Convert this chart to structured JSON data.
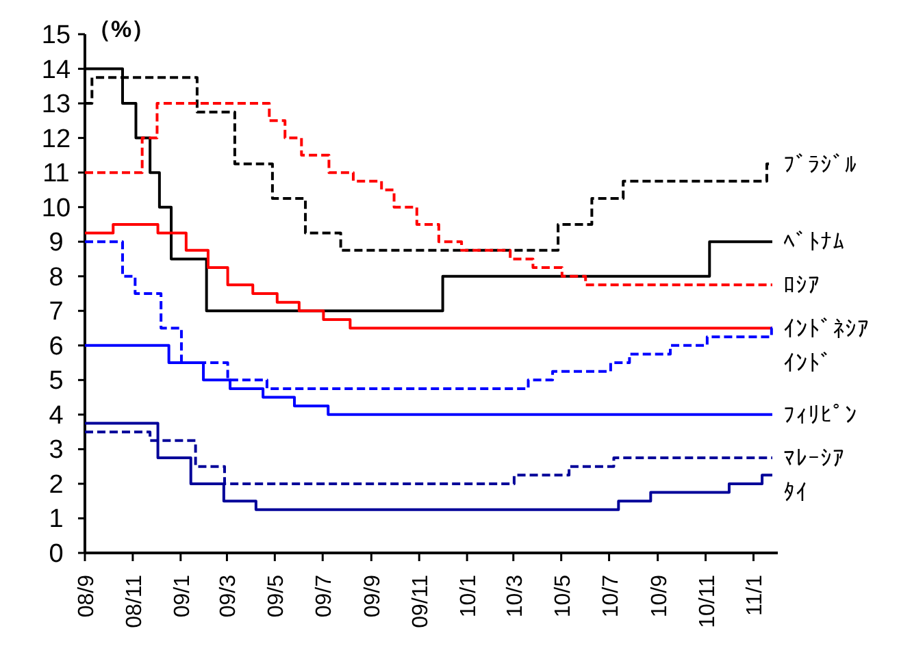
{
  "chart_data": {
    "type": "step",
    "ylabel": "（%）",
    "xlim": [
      "2008-09-01",
      "2011-02-01"
    ],
    "ylim": [
      0,
      15
    ],
    "yticks": [
      0,
      1,
      2,
      3,
      4,
      5,
      6,
      7,
      8,
      9,
      10,
      11,
      12,
      13,
      14,
      15
    ],
    "xticks": [
      {
        "value": "2008-09",
        "label": "08/9"
      },
      {
        "value": "2008-11",
        "label": "08/11"
      },
      {
        "value": "2009-01",
        "label": "09/1"
      },
      {
        "value": "2009-03",
        "label": "09/3"
      },
      {
        "value": "2009-05",
        "label": "09/5"
      },
      {
        "value": "2009-07",
        "label": "09/7"
      },
      {
        "value": "2009-09",
        "label": "09/9"
      },
      {
        "value": "2009-11",
        "label": "09/11"
      },
      {
        "value": "2010-01",
        "label": "10/1"
      },
      {
        "value": "2010-03",
        "label": "10/3"
      },
      {
        "value": "2010-05",
        "label": "10/5"
      },
      {
        "value": "2010-07",
        "label": "10/7"
      },
      {
        "value": "2010-09",
        "label": "10/9"
      },
      {
        "value": "2010-11",
        "label": "10/11"
      },
      {
        "value": "2011-01",
        "label": "11/1"
      }
    ],
    "grid": false,
    "series": [
      {
        "name": "ﾌﾞﾗｼﾞﾙ",
        "color": "#000000",
        "line_style": "dashed",
        "x": [
          "2008-09-01",
          "2008-09-10",
          "2009-01-22",
          "2009-03-11",
          "2009-04-28",
          "2009-06-09",
          "2009-07-24",
          "2010-04-27",
          "2010-06-09",
          "2010-07-19",
          "2011-01-18",
          "2011-01-25"
        ],
        "values": [
          13,
          13.75,
          12.75,
          11.25,
          10.25,
          9.25,
          8.75,
          9.5,
          10.25,
          10.75,
          11.25,
          11.25
        ]
      },
      {
        "name": "ﾍﾞﾄﾅﾑ",
        "color": "#000000",
        "line_style": "solid",
        "x": [
          "2008-09-01",
          "2008-10-19",
          "2008-11-05",
          "2008-11-23",
          "2008-12-05",
          "2008-12-20",
          "2009-02-03",
          "2009-12-01",
          "2010-11-06",
          "2011-01-25"
        ],
        "values": [
          14,
          13,
          12,
          11,
          10,
          8.5,
          7,
          8,
          9,
          9
        ]
      },
      {
        "name": "ﾛｼｱ",
        "color": "#ff0000",
        "line_style": "dashed",
        "x": [
          "2008-09-01",
          "2008-11-13",
          "2008-12-02",
          "2009-04-24",
          "2009-05-14",
          "2009-06-04",
          "2009-07-09",
          "2009-08-09",
          "2009-09-14",
          "2009-09-30",
          "2009-10-29",
          "2009-11-26",
          "2009-12-25",
          "2010-02-25",
          "2010-03-26",
          "2010-05-02",
          "2010-06-01",
          "2011-01-25"
        ],
        "values": [
          11,
          12,
          13,
          12.5,
          12,
          11.5,
          11,
          10.75,
          10.5,
          10,
          9.5,
          9,
          8.75,
          8.5,
          8.25,
          8,
          7.75,
          7.75
        ]
      },
      {
        "name": "ｲﾝﾄﾞﾈｼｱ",
        "color": "#ff0000",
        "line_style": "solid",
        "x": [
          "2008-09-01",
          "2008-10-07",
          "2008-12-03",
          "2009-01-08",
          "2009-02-05",
          "2009-03-02",
          "2009-04-03",
          "2009-05-04",
          "2009-06-01",
          "2009-07-02",
          "2009-08-05",
          "2011-01-25"
        ],
        "values": [
          9.25,
          9.5,
          9.25,
          8.75,
          8.25,
          7.75,
          7.5,
          7.25,
          7,
          6.75,
          6.5,
          6.5
        ]
      },
      {
        "name": "ｲﾝﾄﾞ",
        "color": "#0000ff",
        "line_style": "dashed",
        "x": [
          "2008-09-01",
          "2008-10-19",
          "2008-11-04",
          "2008-12-07",
          "2009-01-02",
          "2009-03-02",
          "2009-04-21",
          "2010-03-20",
          "2010-04-20",
          "2010-07-03",
          "2010-07-27",
          "2010-09-17",
          "2010-11-03",
          "2011-01-24",
          "2011-01-25"
        ],
        "values": [
          9,
          8,
          7.5,
          6.5,
          5.5,
          5,
          4.75,
          5,
          5.25,
          5.5,
          5.75,
          6,
          6.25,
          6.5,
          6.5
        ]
      },
      {
        "name": "ﾌｨﾘﾋﾟﾝ",
        "color": "#0000ff",
        "line_style": "solid",
        "x": [
          "2008-09-01",
          "2008-12-17",
          "2009-01-30",
          "2009-03-05",
          "2009-04-16",
          "2009-05-26",
          "2009-07-08",
          "2011-01-25"
        ],
        "values": [
          6,
          5.5,
          5,
          4.75,
          4.5,
          4.25,
          4,
          4
        ]
      },
      {
        "name": "ﾏﾚｰｼｱ",
        "color": "#000099",
        "line_style": "dashed",
        "x": [
          "2008-09-01",
          "2008-11-23",
          "2009-01-20",
          "2009-02-26",
          "2010-03-02",
          "2010-05-11",
          "2010-07-07",
          "2011-01-25"
        ],
        "values": [
          3.5,
          3.25,
          2.5,
          2,
          2.25,
          2.5,
          2.75,
          2.75
        ]
      },
      {
        "name": "ﾀｲ",
        "color": "#000099",
        "line_style": "solid",
        "x": [
          "2008-09-01",
          "2008-12-03",
          "2009-01-14",
          "2009-02-25",
          "2009-04-07",
          "2010-07-13",
          "2010-08-23",
          "2010-12-01",
          "2011-01-12",
          "2011-01-25"
        ],
        "values": [
          3.75,
          2.75,
          2,
          1.5,
          1.25,
          1.5,
          1.75,
          2,
          2.25,
          2.25
        ]
      }
    ]
  }
}
